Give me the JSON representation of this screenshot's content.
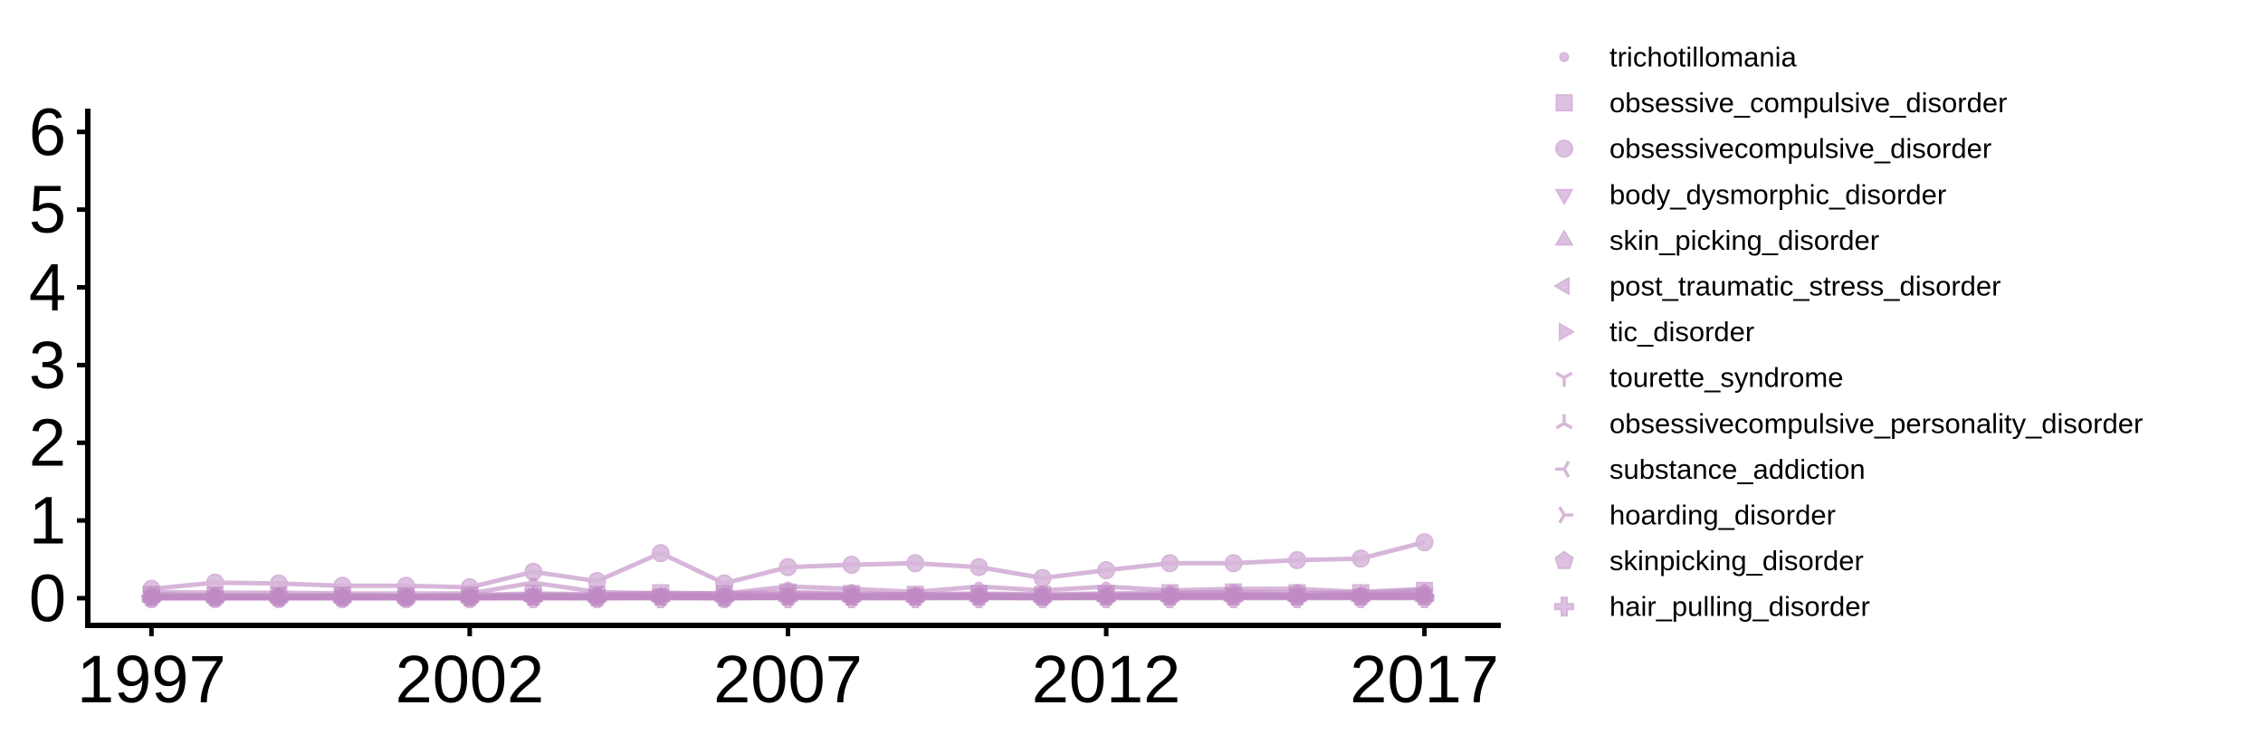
{
  "chart_data": {
    "type": "line",
    "title": "",
    "xlabel": "",
    "ylabel": "",
    "x": [
      1997,
      1998,
      1999,
      2000,
      2001,
      2002,
      2003,
      2004,
      2005,
      2006,
      2007,
      2008,
      2009,
      2010,
      2011,
      2012,
      2013,
      2014,
      2015,
      2016,
      2017
    ],
    "xticks": [
      1997,
      2002,
      2007,
      2012,
      2017
    ],
    "yticks": [
      0,
      1,
      2,
      3,
      4,
      5,
      6
    ],
    "xlim": [
      1996,
      2018.2
    ],
    "ylim": [
      -0.35,
      6.3
    ],
    "grid": false,
    "legend_position": "outside-right",
    "color": "#c08bc4",
    "series": [
      {
        "name": "trichotillomania",
        "marker": "point",
        "values": [
          0.08,
          0.07,
          0.07,
          0.06,
          0.06,
          0.06,
          0.2,
          0.08,
          0.06,
          0.06,
          0.15,
          0.12,
          0.08,
          0.15,
          0.1,
          0.15,
          0.1,
          0.12,
          0.12,
          0.08,
          0.12
        ]
      },
      {
        "name": "obsessive_compulsive_disorder",
        "marker": "square",
        "values": [
          0.05,
          0.04,
          0.04,
          0.04,
          0.03,
          0.04,
          0.06,
          0.05,
          0.07,
          0.06,
          0.08,
          0.06,
          0.05,
          0.06,
          0.05,
          0.06,
          0.07,
          0.08,
          0.07,
          0.07,
          0.1
        ]
      },
      {
        "name": "obsessivecompulsive_disorder",
        "marker": "circle",
        "values": [
          0.12,
          0.2,
          0.19,
          0.16,
          0.16,
          0.14,
          0.34,
          0.22,
          0.58,
          0.19,
          0.4,
          0.43,
          0.45,
          0.4,
          0.26,
          0.36,
          0.45,
          0.45,
          0.49,
          0.51,
          0.72
        ]
      },
      {
        "name": "body_dysmorphic_disorder",
        "marker": "triangle-down",
        "values": [
          0.03,
          0.03,
          0.02,
          0.03,
          0.03,
          0.03,
          0.05,
          0.04,
          0.05,
          0.04,
          0.06,
          0.05,
          0.05,
          0.05,
          0.04,
          0.05,
          0.05,
          0.06,
          0.05,
          0.05,
          0.06
        ]
      },
      {
        "name": "skin_picking_disorder",
        "marker": "triangle-up",
        "values": [
          0.01,
          0.01,
          0.01,
          0.01,
          0.01,
          0.01,
          0.02,
          0.02,
          0.02,
          0.02,
          0.03,
          0.02,
          0.02,
          0.03,
          0.02,
          0.03,
          0.03,
          0.03,
          0.03,
          0.03,
          0.04
        ]
      },
      {
        "name": "post_traumatic_stress_disorder",
        "marker": "triangle-left",
        "values": [
          0.02,
          0.02,
          0.02,
          0.02,
          0.02,
          0.02,
          0.03,
          0.03,
          0.03,
          0.03,
          0.04,
          0.04,
          0.03,
          0.04,
          0.03,
          0.04,
          0.04,
          0.05,
          0.04,
          0.04,
          0.05
        ]
      },
      {
        "name": "tic_disorder",
        "marker": "triangle-right",
        "values": [
          0.01,
          0.01,
          0.01,
          0.01,
          0.01,
          0.01,
          0.02,
          0.01,
          0.02,
          0.01,
          0.02,
          0.02,
          0.02,
          0.02,
          0.02,
          0.02,
          0.02,
          0.02,
          0.02,
          0.02,
          0.03
        ]
      },
      {
        "name": "tourette_syndrome",
        "marker": "tri-down",
        "values": [
          0.02,
          0.02,
          0.02,
          0.02,
          0.02,
          0.02,
          0.03,
          0.02,
          0.03,
          0.02,
          0.03,
          0.03,
          0.03,
          0.03,
          0.02,
          0.03,
          0.03,
          0.03,
          0.03,
          0.03,
          0.04
        ]
      },
      {
        "name": "obsessivecompulsive_personality_disorder",
        "marker": "tri-up",
        "values": [
          0.0,
          0.0,
          0.0,
          0.0,
          0.0,
          0.0,
          0.01,
          0.0,
          0.01,
          0.0,
          0.01,
          0.01,
          0.01,
          0.01,
          0.0,
          0.01,
          0.01,
          0.01,
          0.01,
          0.01,
          0.01
        ]
      },
      {
        "name": "substance_addiction",
        "marker": "tri-left",
        "values": [
          0.0,
          0.0,
          0.0,
          0.0,
          0.0,
          0.0,
          0.0,
          0.0,
          0.0,
          0.0,
          0.01,
          0.0,
          0.0,
          0.01,
          0.0,
          0.01,
          0.01,
          0.01,
          0.01,
          0.01,
          0.01
        ]
      },
      {
        "name": "hoarding_disorder",
        "marker": "tri-right",
        "values": [
          0.0,
          0.0,
          0.0,
          0.0,
          0.0,
          0.0,
          0.0,
          0.0,
          0.01,
          0.0,
          0.01,
          0.01,
          0.01,
          0.01,
          0.01,
          0.01,
          0.01,
          0.02,
          0.01,
          0.01,
          0.02
        ]
      },
      {
        "name": "skinpicking_disorder",
        "marker": "pentagon",
        "values": [
          0.0,
          0.0,
          0.0,
          0.0,
          0.0,
          0.0,
          0.01,
          0.0,
          0.01,
          0.0,
          0.01,
          0.01,
          0.01,
          0.01,
          0.01,
          0.01,
          0.01,
          0.01,
          0.01,
          0.01,
          0.01
        ]
      },
      {
        "name": "hair_pulling_disorder",
        "marker": "plus",
        "values": [
          0.0,
          0.0,
          0.0,
          0.0,
          0.0,
          0.0,
          0.0,
          0.0,
          0.0,
          0.0,
          0.0,
          0.0,
          0.0,
          0.0,
          0.0,
          0.0,
          0.0,
          0.0,
          0.0,
          0.0,
          0.0
        ]
      }
    ]
  }
}
